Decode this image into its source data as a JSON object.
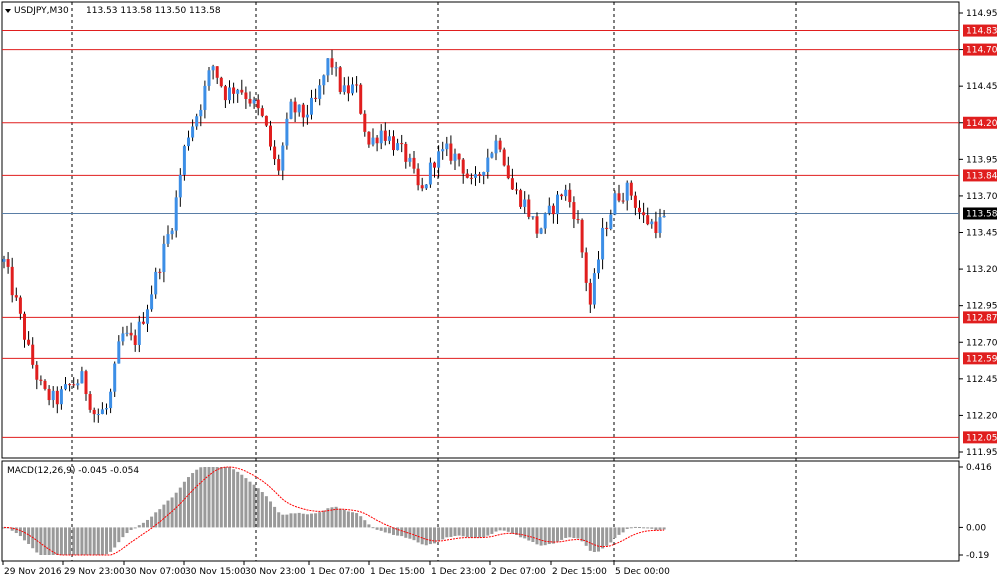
{
  "header": {
    "symbol": "USDJPY,M30",
    "ohlc": "113.53 113.58 113.50 113.58"
  },
  "macd": {
    "label": "MACD(12,26,9) -0.045 -0.054",
    "ticks": [
      "0.416",
      "0.00",
      "-0.19"
    ]
  },
  "colors": {
    "bull": "#3c8ee6",
    "bear": "#e01e1e",
    "level": "#e01e1e",
    "current": "#5a7ea6",
    "histogram": "#9a9a9a",
    "signal": "#ff0000"
  },
  "chart_data": {
    "type": "candlestick",
    "price_axis": {
      "min": 111.95,
      "max": 114.95,
      "ticks": [
        "114.95",
        "114.70",
        "114.45",
        "114.20",
        "113.95",
        "113.70",
        "113.45",
        "113.20",
        "112.95",
        "112.70",
        "112.45",
        "112.20",
        "111.95"
      ]
    },
    "time_labels": [
      "29 Nov 2016",
      "29 Nov 23:00",
      "30 Nov 07:00",
      "30 Nov 15:00",
      "30 Nov 23:00",
      "1 Dec 07:00",
      "1 Dec 15:00",
      "1 Dec 23:00",
      "2 Dec 07:00",
      "2 Dec 15:00",
      "5 Dec 00:00"
    ],
    "levels": [
      "114.83",
      "114.70",
      "114.20",
      "113.84",
      "112.87",
      "112.59",
      "112.05"
    ],
    "current_price": "113.58",
    "anchors": [
      113.25,
      112.95,
      112.6,
      112.35,
      112.3,
      112.4,
      112.45,
      112.2,
      112.25,
      112.75,
      112.7,
      112.95,
      113.25,
      113.55,
      114.1,
      114.3,
      114.6,
      114.4,
      114.45,
      114.35,
      114.2,
      113.85,
      114.3,
      114.25,
      114.35,
      114.65,
      114.4,
      114.45,
      114.05,
      114.15,
      114.05,
      113.95,
      113.7,
      113.95,
      114.0,
      113.95,
      113.75,
      113.95,
      114.1,
      113.75,
      113.65,
      113.45,
      113.6,
      113.75,
      113.55,
      112.95,
      113.45,
      113.7,
      113.75,
      113.55,
      113.5,
      113.55
    ]
  }
}
